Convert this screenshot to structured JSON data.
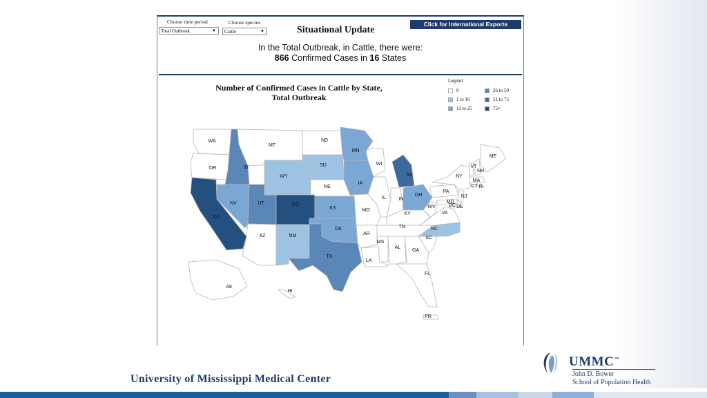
{
  "controls": {
    "time_label": "Choose time period",
    "time_value": "Total Outbreak",
    "species_label": "Choose species",
    "species_value": "Cattle"
  },
  "header": {
    "title": "Situational Update",
    "export_button": "Click for International Exports"
  },
  "summary": {
    "line1": "In the Total Outbreak, in Cattle, there were:",
    "cases": "866",
    "cases_text": "Confirmed Cases in",
    "states": "16",
    "states_text": "States"
  },
  "map": {
    "title_line1": "Number of Confirmed Cases in Cattle by State,",
    "title_line2": "Total Outbreak",
    "legend_title": "Legend",
    "legend": [
      {
        "label": "0",
        "color": "#ffffff"
      },
      {
        "label": "1 to 10",
        "color": "#9ec2e2"
      },
      {
        "label": "11 to 25",
        "color": "#7aa7d4"
      },
      {
        "label": "26 to 50",
        "color": "#5a86b8"
      },
      {
        "label": "51 to 75",
        "color": "#3d6a9e"
      },
      {
        "label": "75+",
        "color": "#24507f"
      }
    ],
    "states": [
      {
        "abbr": "WA",
        "level": 0
      },
      {
        "abbr": "OR",
        "level": 0
      },
      {
        "abbr": "CA",
        "level": 5
      },
      {
        "abbr": "ID",
        "level": 3
      },
      {
        "abbr": "NV",
        "level": 2
      },
      {
        "abbr": "UT",
        "level": 3
      },
      {
        "abbr": "AZ",
        "level": 0
      },
      {
        "abbr": "MT",
        "level": 0
      },
      {
        "abbr": "WY",
        "level": 1
      },
      {
        "abbr": "CO",
        "level": 5
      },
      {
        "abbr": "NM",
        "level": 1
      },
      {
        "abbr": "ND",
        "level": 0
      },
      {
        "abbr": "SD",
        "level": 1
      },
      {
        "abbr": "NE",
        "level": 0
      },
      {
        "abbr": "KS",
        "level": 2
      },
      {
        "abbr": "OK",
        "level": 2
      },
      {
        "abbr": "TX",
        "level": 3
      },
      {
        "abbr": "MN",
        "level": 2
      },
      {
        "abbr": "IA",
        "level": 2
      },
      {
        "abbr": "MO",
        "level": 0
      },
      {
        "abbr": "AR",
        "level": 0
      },
      {
        "abbr": "LA",
        "level": 0
      },
      {
        "abbr": "WI",
        "level": 0
      },
      {
        "abbr": "IL",
        "level": 0
      },
      {
        "abbr": "MI",
        "level": 4
      },
      {
        "abbr": "IN",
        "level": 0
      },
      {
        "abbr": "OH",
        "level": 2
      },
      {
        "abbr": "KY",
        "level": 0
      },
      {
        "abbr": "TN",
        "level": 0
      },
      {
        "abbr": "MS",
        "level": 0
      },
      {
        "abbr": "AL",
        "level": 0
      },
      {
        "abbr": "GA",
        "level": 0
      },
      {
        "abbr": "FL",
        "level": 0
      },
      {
        "abbr": "SC",
        "level": 0
      },
      {
        "abbr": "NC",
        "level": 1
      },
      {
        "abbr": "VA",
        "level": 0
      },
      {
        "abbr": "WV",
        "level": 0
      },
      {
        "abbr": "PA",
        "level": 0
      },
      {
        "abbr": "NY",
        "level": 0
      },
      {
        "abbr": "NJ",
        "level": 0
      },
      {
        "abbr": "MD",
        "level": 0
      },
      {
        "abbr": "DC",
        "level": 0
      },
      {
        "abbr": "DE",
        "level": 0
      },
      {
        "abbr": "CT",
        "level": 0
      },
      {
        "abbr": "RI",
        "level": 0
      },
      {
        "abbr": "MA",
        "level": 0
      },
      {
        "abbr": "VT",
        "level": 0
      },
      {
        "abbr": "NH",
        "level": 0
      },
      {
        "abbr": "ME",
        "level": 0
      },
      {
        "abbr": "AK",
        "level": 0
      },
      {
        "abbr": "HI",
        "level": 0
      },
      {
        "abbr": "PR",
        "level": 0
      }
    ]
  },
  "footer": {
    "university": "University of Mississippi Medical Center",
    "logo_word": "UMMC",
    "logo_tm": "™",
    "school_line1": "John D. Bower",
    "school_line2": "School of Population Health"
  },
  "colors": {
    "brand_navy": "#1f3b6a",
    "bottom_bar": "#1b5f9e"
  }
}
